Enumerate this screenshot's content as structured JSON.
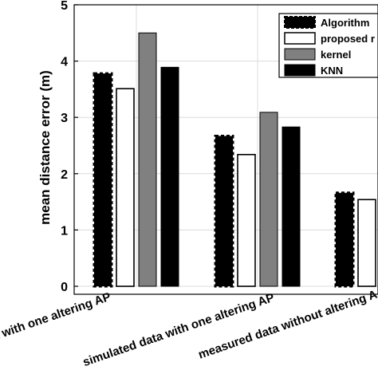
{
  "chart_data": {
    "type": "bar",
    "title": "",
    "xlabel": "",
    "ylabel": "mean distance error (m)",
    "ylim": [
      0,
      5
    ],
    "yticks": [
      "0",
      "1",
      "2",
      "3",
      "4",
      "5"
    ],
    "grid": true,
    "legend_position": "top-right",
    "categories": [
      "measured data with one altering AP",
      "simulated data with one altering AP",
      "measured data without altering AP"
    ],
    "category_display": [
      "ata with one altering AP",
      "simulated data with one altering AP",
      "measured data without altering A"
    ],
    "series": [
      {
        "name": "Algorithm",
        "legend_display": "Algorithm",
        "values": [
          3.78,
          2.67,
          1.66
        ],
        "color": "#000000",
        "pattern": "dashed-outline"
      },
      {
        "name": "proposed",
        "legend_display": "proposed r",
        "values": [
          3.51,
          2.34,
          1.54
        ],
        "color": "#ffffff",
        "pattern": "outline"
      },
      {
        "name": "kernel",
        "legend_display": "kernel",
        "values": [
          4.5,
          3.09,
          null
        ],
        "color": "#808080",
        "pattern": "solid"
      },
      {
        "name": "KNN",
        "legend_display": "KNN",
        "values": [
          3.89,
          2.83,
          null
        ],
        "color": "#000000",
        "pattern": "solid"
      }
    ]
  }
}
